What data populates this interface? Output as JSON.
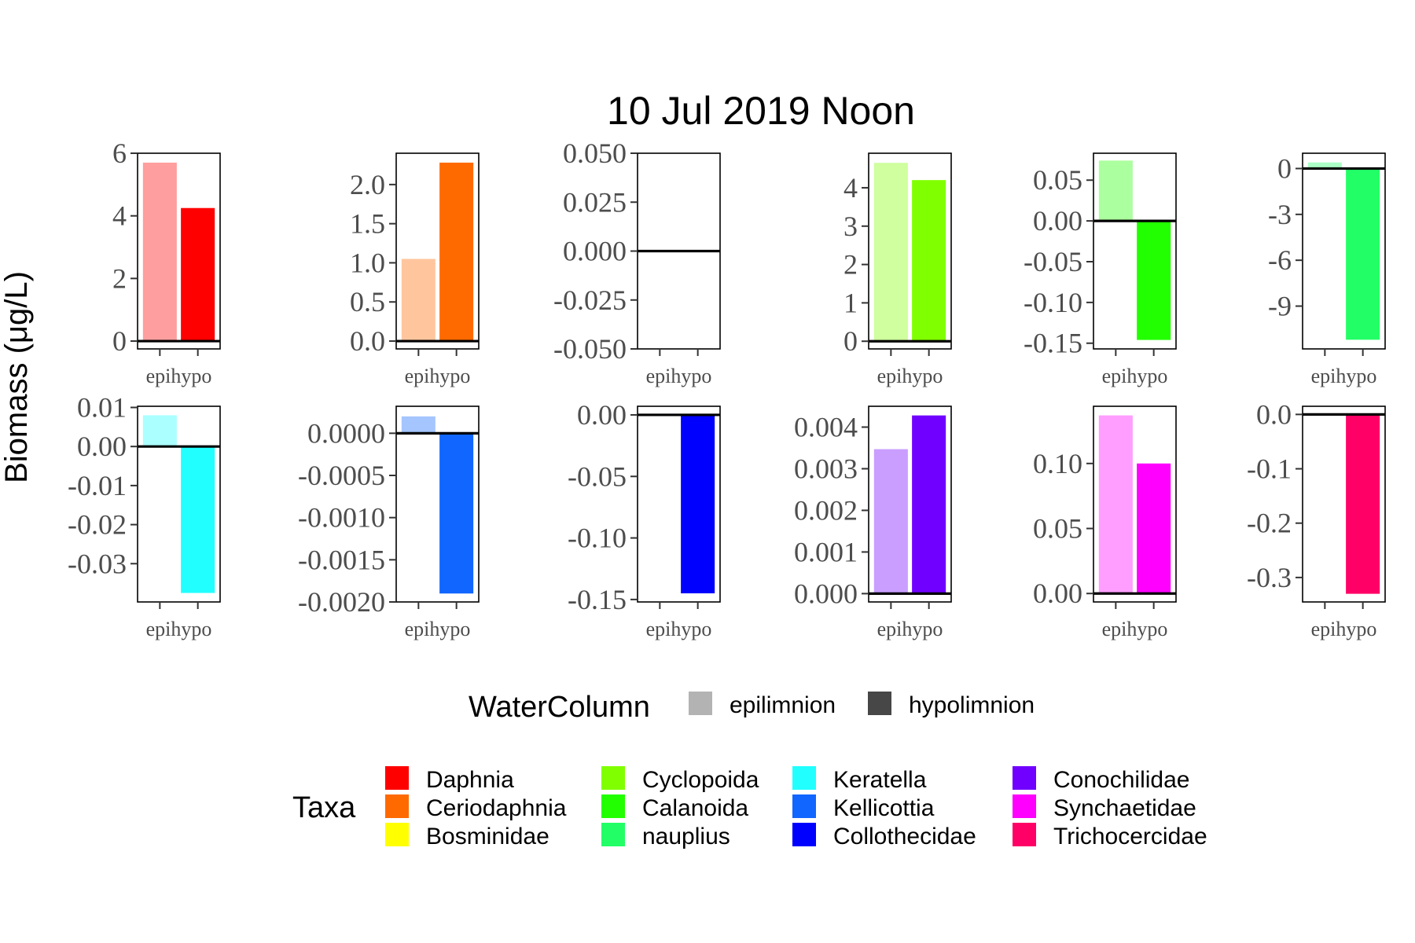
{
  "title": "10 Jul 2019 Noon",
  "ylabel": "Biomass (μg/L)",
  "legends": {
    "watercolumn": {
      "title": "WaterColumn",
      "items": [
        {
          "label": "epilimnion",
          "color": "#b3b3b3"
        },
        {
          "label": "hypolimnion",
          "color": "#474747"
        }
      ]
    },
    "taxa": {
      "title": "Taxa",
      "items": [
        {
          "label": "Daphnia",
          "color": "#ff0000"
        },
        {
          "label": "Ceriodaphnia",
          "color": "#ff6a00"
        },
        {
          "label": "Bosminidae",
          "color": "#ffff00"
        },
        {
          "label": "Cyclopoida",
          "color": "#80ff00"
        },
        {
          "label": "Calanoida",
          "color": "#22ff00"
        },
        {
          "label": "nauplius",
          "color": "#22ff66"
        },
        {
          "label": "Keratella",
          "color": "#22ffff"
        },
        {
          "label": "Kellicottia",
          "color": "#1166ff"
        },
        {
          "label": "Collothecidae",
          "color": "#0000ff"
        },
        {
          "label": "Conochilidae",
          "color": "#7000ff"
        },
        {
          "label": "Synchaetidae",
          "color": "#ff00ff"
        },
        {
          "label": "Trichocercidae",
          "color": "#ff0066"
        }
      ]
    }
  },
  "chart_data": [
    {
      "type": "bar",
      "taxon": "Daphnia",
      "color": "#ff0000",
      "categories": [
        "epi",
        "hypo"
      ],
      "values": [
        5.7,
        4.25
      ],
      "ylim": [
        -0.25,
        6.0
      ],
      "yticks": [
        {
          "v": 0,
          "l": "0"
        },
        {
          "v": 2,
          "l": "2"
        },
        {
          "v": 4,
          "l": "4"
        },
        {
          "v": 6,
          "l": "6"
        }
      ]
    },
    {
      "type": "bar",
      "taxon": "Ceriodaphnia",
      "color": "#ff6a00",
      "categories": [
        "epi",
        "hypo"
      ],
      "values": [
        1.05,
        2.28
      ],
      "ylim": [
        -0.1,
        2.4
      ],
      "yticks": [
        {
          "v": 0,
          "l": "0.0"
        },
        {
          "v": 0.5,
          "l": "0.5"
        },
        {
          "v": 1.0,
          "l": "1.0"
        },
        {
          "v": 1.5,
          "l": "1.5"
        },
        {
          "v": 2.0,
          "l": "2.0"
        }
      ]
    },
    {
      "type": "bar",
      "taxon": "Bosminidae",
      "color": "#ffff00",
      "categories": [
        "epi",
        "hypo"
      ],
      "values": [
        0,
        0
      ],
      "ylim": [
        -0.05,
        0.05
      ],
      "yticks": [
        {
          "v": -0.05,
          "l": "-0.050"
        },
        {
          "v": -0.025,
          "l": "-0.025"
        },
        {
          "v": 0,
          "l": "0.000"
        },
        {
          "v": 0.025,
          "l": "0.025"
        },
        {
          "v": 0.05,
          "l": "0.050"
        }
      ]
    },
    {
      "type": "bar",
      "taxon": "Cyclopoida",
      "color": "#80ff00",
      "categories": [
        "epi",
        "hypo"
      ],
      "values": [
        4.65,
        4.2
      ],
      "ylim": [
        -0.2,
        4.9
      ],
      "yticks": [
        {
          "v": 0,
          "l": "0"
        },
        {
          "v": 1,
          "l": "1"
        },
        {
          "v": 2,
          "l": "2"
        },
        {
          "v": 3,
          "l": "3"
        },
        {
          "v": 4,
          "l": "4"
        }
      ]
    },
    {
      "type": "bar",
      "taxon": "Calanoida",
      "color": "#22ff00",
      "categories": [
        "epi",
        "hypo"
      ],
      "values": [
        0.074,
        -0.146
      ],
      "ylim": [
        -0.157,
        0.083
      ],
      "yticks": [
        {
          "v": -0.15,
          "l": "-0.15"
        },
        {
          "v": -0.1,
          "l": "-0.10"
        },
        {
          "v": -0.05,
          "l": "-0.05"
        },
        {
          "v": 0,
          "l": "0.00"
        },
        {
          "v": 0.05,
          "l": "0.05"
        }
      ]
    },
    {
      "type": "bar",
      "taxon": "nauplius",
      "color": "#22ff66",
      "categories": [
        "epi",
        "hypo"
      ],
      "values": [
        0.4,
        -11.2
      ],
      "ylim": [
        -11.8,
        1.0
      ],
      "yticks": [
        {
          "v": -9,
          "l": "-9"
        },
        {
          "v": -6,
          "l": "-6"
        },
        {
          "v": -3,
          "l": "-3"
        },
        {
          "v": 0,
          "l": "0"
        }
      ]
    },
    {
      "type": "bar",
      "taxon": "Keratella",
      "color": "#22ffff",
      "categories": [
        "epi",
        "hypo"
      ],
      "values": [
        0.008,
        -0.0375
      ],
      "ylim": [
        -0.0398,
        0.0103
      ],
      "yticks": [
        {
          "v": -0.03,
          "l": "-0.03"
        },
        {
          "v": -0.02,
          "l": "-0.02"
        },
        {
          "v": -0.01,
          "l": "-0.01"
        },
        {
          "v": 0,
          "l": "0.00"
        },
        {
          "v": 0.01,
          "l": "0.01"
        }
      ]
    },
    {
      "type": "bar",
      "taxon": "Kellicottia",
      "color": "#1166ff",
      "categories": [
        "epi",
        "hypo"
      ],
      "values": [
        0.0002,
        -0.0019
      ],
      "ylim": [
        -0.002,
        0.00032
      ],
      "yticks": [
        {
          "v": -0.002,
          "l": "-0.0020"
        },
        {
          "v": -0.0015,
          "l": "-0.0015"
        },
        {
          "v": -0.001,
          "l": "-0.0010"
        },
        {
          "v": -0.0005,
          "l": "-0.0005"
        },
        {
          "v": 0,
          "l": "0.0000"
        }
      ]
    },
    {
      "type": "bar",
      "taxon": "Collothecidae",
      "color": "#0000ff",
      "categories": [
        "epi",
        "hypo"
      ],
      "values": [
        0,
        -0.145
      ],
      "ylim": [
        -0.152,
        0.007
      ],
      "yticks": [
        {
          "v": -0.15,
          "l": "-0.15"
        },
        {
          "v": -0.1,
          "l": "-0.10"
        },
        {
          "v": -0.05,
          "l": "-0.05"
        },
        {
          "v": 0,
          "l": "0.00"
        }
      ]
    },
    {
      "type": "bar",
      "taxon": "Conochilidae",
      "color": "#7000ff",
      "categories": [
        "epi",
        "hypo"
      ],
      "values": [
        0.00347,
        0.00428
      ],
      "ylim": [
        -0.0002,
        0.0045
      ],
      "yticks": [
        {
          "v": 0,
          "l": "0.000"
        },
        {
          "v": 0.001,
          "l": "0.001"
        },
        {
          "v": 0.002,
          "l": "0.002"
        },
        {
          "v": 0.003,
          "l": "0.003"
        },
        {
          "v": 0.004,
          "l": "0.004"
        }
      ]
    },
    {
      "type": "bar",
      "taxon": "Synchaetidae",
      "color": "#ff00ff",
      "categories": [
        "epi",
        "hypo"
      ],
      "values": [
        0.137,
        0.1
      ],
      "ylim": [
        -0.0065,
        0.144
      ],
      "yticks": [
        {
          "v": 0,
          "l": "0.00"
        },
        {
          "v": 0.05,
          "l": "0.05"
        },
        {
          "v": 0.1,
          "l": "0.10"
        }
      ]
    },
    {
      "type": "bar",
      "taxon": "Trichocercidae",
      "color": "#ff0066",
      "categories": [
        "epi",
        "hypo"
      ],
      "values": [
        0,
        -0.33
      ],
      "ylim": [
        -0.345,
        0.015
      ],
      "yticks": [
        {
          "v": -0.3,
          "l": "-0.3"
        },
        {
          "v": -0.2,
          "l": "-0.2"
        },
        {
          "v": -0.1,
          "l": "-0.1"
        },
        {
          "v": 0,
          "l": "0.0"
        }
      ]
    }
  ]
}
